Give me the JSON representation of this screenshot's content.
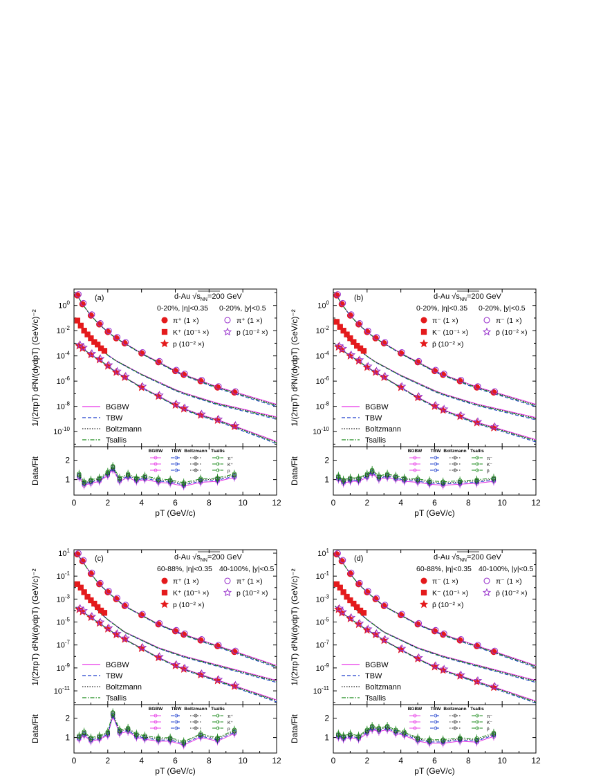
{
  "chart_data": [
    {
      "panel": "(a)",
      "type": "scatter",
      "system": "d-Au",
      "energy_label": "=200 GeV",
      "sqrt_sub": "NN",
      "cent_filled": "0-20%, |η|<0.35",
      "cent_open": "0-20%, |y|<0.5",
      "ylabel": "1/(2πpT) d²N/(dydpT)  (GeV/c)⁻²",
      "xlabel": "pT (GeV/c)",
      "ratio_label": "Data/Fit",
      "xlim": [
        0,
        12
      ],
      "ylog_range": [
        -11.2,
        1.3
      ],
      "yticks_exp": [
        0,
        -2,
        -4,
        -6,
        -8,
        -10
      ],
      "xticks": [
        0,
        2,
        4,
        6,
        8,
        10,
        12
      ],
      "ratio_ylim": [
        0.2,
        2.7
      ],
      "ratio_yticks": [
        1,
        2
      ],
      "legend_particles": [
        {
          "marker": "circle",
          "label": "π⁺ (1 ×)",
          "filled": true
        },
        {
          "marker": "square",
          "label": "K⁺ (10⁻¹ ×)",
          "filled": true
        },
        {
          "marker": "star",
          "label": "p  (10⁻² ×)",
          "filled": true
        },
        {
          "marker": "circle",
          "label": "π⁺ (1 ×)",
          "filled": false
        },
        {
          "marker": "star",
          "label": "p  (10⁻² ×)",
          "filled": false
        }
      ],
      "fit_legend": [
        "BGBW",
        "TBW",
        "Boltzmann",
        "Tsallis"
      ],
      "ratio_header": [
        "BGBW",
        "TBW",
        "Boltzmann",
        "Tsallis"
      ],
      "ratio_species": [
        "π⁺",
        "K⁺",
        "p"
      ],
      "series": [
        {
          "name": "π (1 ×)",
          "x": [
            0.2,
            0.5,
            1,
            1.5,
            2,
            2.5,
            3,
            4,
            5,
            6,
            6.5,
            7.5,
            8.5,
            9.5
          ],
          "y_log10": [
            0.8,
            0.1,
            -0.8,
            -1.5,
            -2.1,
            -2.6,
            -3.0,
            -3.8,
            -4.5,
            -5.2,
            -5.5,
            -6.0,
            -6.5,
            -6.9
          ]
        },
        {
          "name": "K (10⁻¹ ×)",
          "x": [
            0.2,
            0.4,
            0.6,
            0.8,
            1.0,
            1.2,
            1.4,
            1.6,
            1.8
          ],
          "y_log10": [
            -1.2,
            -1.6,
            -2.0,
            -2.3,
            -2.6,
            -2.9,
            -3.1,
            -3.4,
            -3.6
          ]
        },
        {
          "name": "p (10⁻² ×)",
          "x": [
            0.3,
            0.5,
            1,
            1.5,
            2,
            2.5,
            3,
            4,
            5,
            6,
            6.5,
            7.5,
            8.5,
            9.5
          ],
          "y_log10": [
            -3.2,
            -3.4,
            -3.9,
            -4.3,
            -4.8,
            -5.3,
            -5.7,
            -6.5,
            -7.2,
            -7.9,
            -8.2,
            -8.7,
            -9.1,
            -9.6
          ]
        }
      ],
      "ratio_points": {
        "x": [
          0.3,
          0.6,
          1.0,
          1.5,
          2.0,
          2.3,
          2.7,
          3.2,
          3.7,
          4.2,
          5.0,
          5.7,
          6.5,
          7.5,
          8.5,
          9.5
        ],
        "y": [
          1.2,
          0.8,
          0.9,
          1.0,
          1.3,
          1.6,
          1.0,
          1.2,
          1.0,
          1.1,
          0.95,
          0.9,
          0.75,
          0.95,
          1.0,
          1.2
        ]
      }
    },
    {
      "panel": "(b)",
      "type": "scatter",
      "system": "d-Au",
      "energy_label": "=200 GeV",
      "sqrt_sub": "NN",
      "cent_filled": "0-20%, |η|<0.35",
      "cent_open": "0-20%, |y|<0.5",
      "ylabel": "1/(2πpT) d²N/(dydpT)  (GeV/c)⁻²",
      "xlabel": "pT (GeV/c)",
      "ratio_label": "Data/Fit",
      "xlim": [
        0,
        12
      ],
      "ylog_range": [
        -11.2,
        1.3
      ],
      "yticks_exp": [
        0,
        -2,
        -4,
        -6,
        -8,
        -10
      ],
      "xticks": [
        0,
        2,
        4,
        6,
        8,
        10,
        12
      ],
      "ratio_ylim": [
        0.2,
        2.7
      ],
      "ratio_yticks": [
        1,
        2
      ],
      "legend_particles": [
        {
          "marker": "circle",
          "label": "π⁻  (1 ×)",
          "filled": true
        },
        {
          "marker": "square",
          "label": "K⁻ (10⁻¹ ×)",
          "filled": true
        },
        {
          "marker": "star",
          "label": "p̄  (10⁻² ×)",
          "filled": true
        },
        {
          "marker": "circle",
          "label": "π⁻  (1 ×)",
          "filled": false
        },
        {
          "marker": "star",
          "label": "p̄  (10⁻² ×)",
          "filled": false
        }
      ],
      "fit_legend": [
        "BGBW",
        "TBW",
        "Boltzmann",
        "Tsallis"
      ],
      "ratio_header": [
        "BGBW",
        "TBW",
        "Boltzmann",
        "Tsallis"
      ],
      "ratio_species": [
        "π⁻",
        "K⁻",
        "p̄"
      ],
      "series": [
        {
          "name": "π (1 ×)",
          "x": [
            0.2,
            0.5,
            1,
            1.5,
            2,
            2.5,
            3,
            4,
            5,
            6,
            6.5,
            7.5,
            8.5,
            9.5
          ],
          "y_log10": [
            0.8,
            0.1,
            -0.8,
            -1.5,
            -2.1,
            -2.6,
            -3.0,
            -3.8,
            -4.5,
            -5.2,
            -5.5,
            -6.0,
            -6.5,
            -6.9
          ]
        },
        {
          "name": "K (10⁻¹ ×)",
          "x": [
            0.2,
            0.4,
            0.6,
            0.8,
            1.0,
            1.2,
            1.4,
            1.6,
            1.8
          ],
          "y_log10": [
            -1.3,
            -1.7,
            -2.0,
            -2.3,
            -2.6,
            -2.9,
            -3.2,
            -3.4,
            -3.6
          ]
        },
        {
          "name": "p (10⁻² ×)",
          "x": [
            0.3,
            0.5,
            1,
            1.5,
            2,
            2.5,
            3,
            4,
            5,
            6,
            6.5,
            7.5,
            8.5,
            9.5
          ],
          "y_log10": [
            -3.3,
            -3.5,
            -4.0,
            -4.4,
            -4.9,
            -5.3,
            -5.7,
            -6.5,
            -7.3,
            -8.0,
            -8.3,
            -8.8,
            -9.3,
            -9.7
          ]
        }
      ],
      "ratio_points": {
        "x": [
          0.3,
          0.6,
          1.0,
          1.5,
          2.0,
          2.3,
          2.7,
          3.2,
          3.7,
          4.2,
          5.0,
          5.7,
          6.5,
          7.5,
          8.5,
          9.5
        ],
        "y": [
          1.1,
          0.9,
          1.0,
          1.0,
          1.2,
          1.4,
          1.1,
          1.2,
          1.1,
          1.0,
          0.95,
          0.85,
          0.8,
          0.85,
          0.9,
          1.0
        ]
      }
    },
    {
      "panel": "(c)",
      "type": "scatter",
      "system": "d-Au",
      "energy_label": "=200 GeV",
      "sqrt_sub": "NN",
      "cent_filled": "60-88%, |η|<0.35",
      "cent_open": "40-100%, |y|<0.5",
      "ylabel": "1/(2πpT) d²N/(dydpT)  (GeV/c)⁻²",
      "xlabel": "pT (GeV/c)",
      "ratio_label": "Data/Fit",
      "xlim": [
        0,
        12
      ],
      "ylog_range": [
        -12.2,
        1.3
      ],
      "yticks_exp": [
        1,
        -1,
        -3,
        -5,
        -7,
        -9,
        -11
      ],
      "xticks": [
        0,
        2,
        4,
        6,
        8,
        10,
        12
      ],
      "ratio_ylim": [
        0.2,
        2.7
      ],
      "ratio_yticks": [
        1,
        2
      ],
      "legend_particles": [
        {
          "marker": "circle",
          "label": "π⁺  (1 ×)",
          "filled": true
        },
        {
          "marker": "square",
          "label": "K⁺ (10⁻¹ ×)",
          "filled": true
        },
        {
          "marker": "star",
          "label": "p  (10⁻² ×)",
          "filled": true
        },
        {
          "marker": "circle",
          "label": "π⁺  (1 ×)",
          "filled": false
        },
        {
          "marker": "star",
          "label": "p  (10⁻² ×)",
          "filled": false
        }
      ],
      "fit_legend": [
        "BGBW",
        "TBW",
        "Boltzmann",
        "Tsallis"
      ],
      "ratio_header": [
        "BGBW",
        "TBW",
        "Boltzmann",
        "Tsallis"
      ],
      "ratio_species": [
        "π⁺",
        "K⁺",
        "p"
      ],
      "series": [
        {
          "name": "π (1 ×)",
          "x": [
            0.2,
            0.5,
            1,
            1.5,
            2,
            2.5,
            3,
            4,
            5,
            6,
            6.5,
            7.5,
            8.5,
            9.5
          ],
          "y_log10": [
            0.9,
            0.3,
            -0.8,
            -1.7,
            -2.4,
            -3.0,
            -3.6,
            -4.4,
            -5.2,
            -5.8,
            -6.1,
            -6.6,
            -7.1,
            -7.6
          ]
        },
        {
          "name": "K (10⁻¹ ×)",
          "x": [
            0.2,
            0.4,
            0.6,
            0.8,
            1.0,
            1.2,
            1.4,
            1.6,
            1.8
          ],
          "y_log10": [
            -1.7,
            -2.0,
            -2.4,
            -2.8,
            -3.1,
            -3.4,
            -3.7,
            -4.0,
            -4.2
          ]
        },
        {
          "name": "p (10⁻² ×)",
          "x": [
            0.3,
            0.5,
            1,
            1.5,
            2,
            2.5,
            3,
            4,
            5,
            6,
            6.5,
            7.5,
            8.5,
            9.5
          ],
          "y_log10": [
            -3.9,
            -4.1,
            -4.6,
            -5.1,
            -5.6,
            -6.1,
            -6.5,
            -7.3,
            -8.1,
            -8.8,
            -9.1,
            -9.6,
            -10.1,
            -10.6
          ]
        }
      ],
      "ratio_points": {
        "x": [
          0.3,
          0.6,
          1.0,
          1.5,
          2.0,
          2.3,
          2.7,
          3.2,
          3.7,
          4.2,
          5.0,
          5.7,
          6.5,
          7.5,
          8.5,
          9.5
        ],
        "y": [
          1.0,
          1.2,
          0.9,
          1.0,
          1.2,
          2.2,
          1.3,
          1.4,
          1.1,
          1.0,
          0.9,
          0.9,
          0.7,
          1.1,
          0.9,
          1.3
        ]
      }
    },
    {
      "panel": "(d)",
      "type": "scatter",
      "system": "d-Au",
      "energy_label": "=200 GeV",
      "sqrt_sub": "NN",
      "cent_filled": "60-88%, |η|<0.35",
      "cent_open": "40-100%, |y|<0.5",
      "ylabel": "1/(2πpT) d²N/(dydpT)  (GeV/c)⁻²",
      "xlabel": "pT (GeV/c)",
      "ratio_label": "Data/Fit",
      "xlim": [
        0,
        12
      ],
      "ylog_range": [
        -12.2,
        1.3
      ],
      "yticks_exp": [
        1,
        -1,
        -3,
        -5,
        -7,
        -9,
        -11
      ],
      "xticks": [
        0,
        2,
        4,
        6,
        8,
        10,
        12
      ],
      "ratio_ylim": [
        0.2,
        2.7
      ],
      "ratio_yticks": [
        1,
        2
      ],
      "legend_particles": [
        {
          "marker": "circle",
          "label": "π⁻  (1 ×)",
          "filled": true
        },
        {
          "marker": "square",
          "label": "K⁻ (10⁻¹ ×)",
          "filled": true
        },
        {
          "marker": "star",
          "label": "p̄  (10⁻² ×)",
          "filled": true
        },
        {
          "marker": "circle",
          "label": "π⁻  (1 ×)",
          "filled": false
        },
        {
          "marker": "star",
          "label": "p̄  (10⁻² ×)",
          "filled": false
        }
      ],
      "fit_legend": [
        "BGBW",
        "TBW",
        "Boltzmann",
        "Tsallis"
      ],
      "ratio_header": [
        "BGBW",
        "TBW",
        "Boltzmann",
        "Tsallis"
      ],
      "ratio_species": [
        "π⁻",
        "K⁻",
        "p̄"
      ],
      "series": [
        {
          "name": "π (1 ×)",
          "x": [
            0.2,
            0.5,
            1,
            1.5,
            2,
            2.5,
            3,
            4,
            5,
            6,
            6.5,
            7.5,
            8.5,
            9.5
          ],
          "y_log10": [
            0.9,
            0.3,
            -0.8,
            -1.7,
            -2.4,
            -3.0,
            -3.6,
            -4.4,
            -5.2,
            -5.8,
            -6.1,
            -6.6,
            -7.1,
            -7.6
          ]
        },
        {
          "name": "K (10⁻¹ ×)",
          "x": [
            0.2,
            0.4,
            0.6,
            0.8,
            1.0,
            1.2,
            1.4,
            1.6,
            1.8
          ],
          "y_log10": [
            -1.7,
            -2.0,
            -2.4,
            -2.8,
            -3.1,
            -3.4,
            -3.7,
            -4.0,
            -4.2
          ]
        },
        {
          "name": "p (10⁻² ×)",
          "x": [
            0.3,
            0.5,
            1,
            1.5,
            2,
            2.5,
            3,
            4,
            5,
            6,
            6.5,
            7.5,
            8.5,
            9.5
          ],
          "y_log10": [
            -3.9,
            -4.2,
            -4.7,
            -5.2,
            -5.7,
            -6.1,
            -6.6,
            -7.4,
            -8.2,
            -8.9,
            -9.2,
            -9.7,
            -10.2,
            -10.7
          ]
        }
      ],
      "ratio_points": {
        "x": [
          0.3,
          0.6,
          1.0,
          1.5,
          2.0,
          2.3,
          2.7,
          3.2,
          3.7,
          4.2,
          5.0,
          5.7,
          6.5,
          7.5,
          8.5,
          9.5
        ],
        "y": [
          1.1,
          1.0,
          1.1,
          1.0,
          1.3,
          1.5,
          1.4,
          1.5,
          1.3,
          1.2,
          0.9,
          0.8,
          0.8,
          0.9,
          0.85,
          1.15
        ]
      }
    }
  ],
  "colors": {
    "data": "#e41a1c",
    "open_pi": "#9933cc",
    "bgbw": "#e633e6",
    "tbw": "#1f3fcc",
    "boltzmann": "#222222",
    "tsallis": "#1a8a1a"
  }
}
